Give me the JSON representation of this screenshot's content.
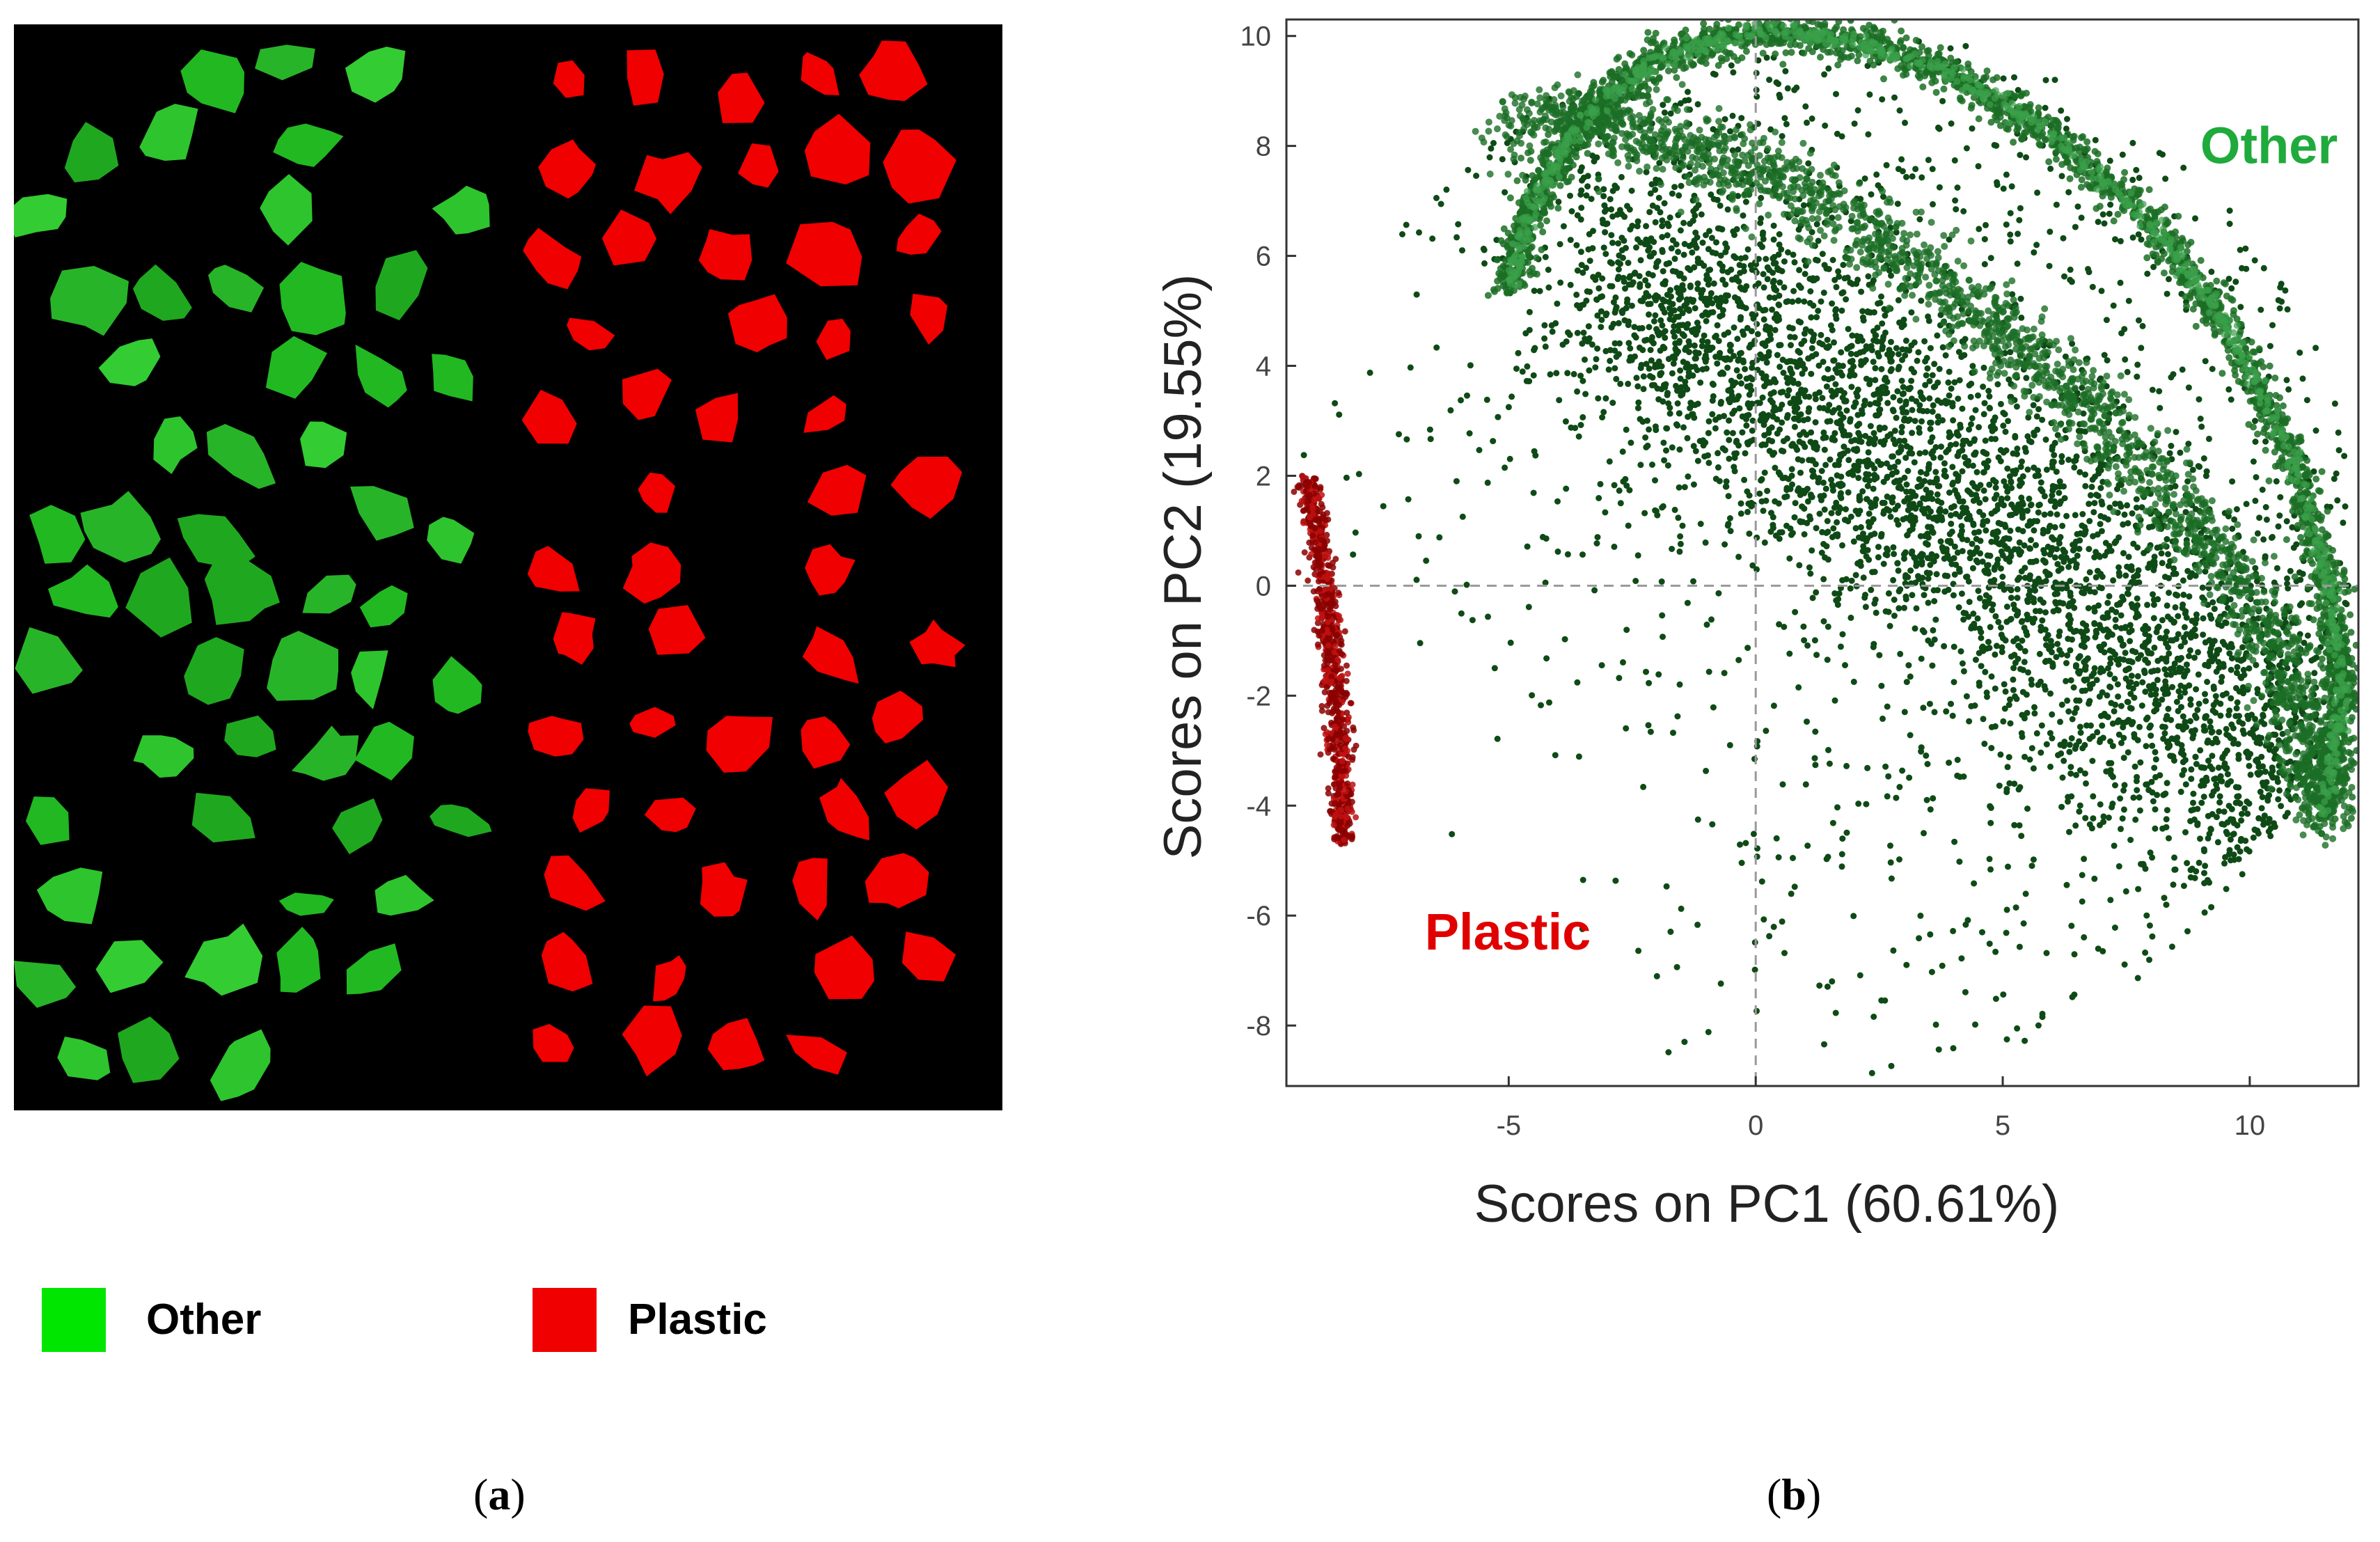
{
  "panel_a": {
    "legend": [
      {
        "label": "Other",
        "color": "#00e600"
      },
      {
        "label": "Plastic",
        "color": "#f00000"
      }
    ],
    "caption_letter": "a",
    "background_color": "#000000"
  },
  "panel_b": {
    "caption_letter": "b"
  },
  "chart_data": {
    "type": "scatter",
    "xlabel": "Scores on PC1 (60.61%)",
    "ylabel": "Scores on PC2 (19.55%)",
    "xlim": [
      -9.5,
      12.2
    ],
    "ylim": [
      -9.1,
      10.3
    ],
    "xticks": [
      -5,
      0,
      5,
      10
    ],
    "yticks": [
      -8,
      -6,
      -4,
      -2,
      0,
      2,
      4,
      6,
      8,
      10
    ],
    "reference_lines": {
      "x": 0,
      "y": 0
    },
    "annotations": [
      {
        "text": "Other",
        "x": 9.0,
        "y": 8.0,
        "color": "#1faa3c"
      },
      {
        "text": "Plastic",
        "x": -6.7,
        "y": -6.3,
        "color": "#e00000"
      }
    ],
    "series": [
      {
        "name": "Other",
        "color": "#0f4a16",
        "arc_upper": [
          [
            -5.0,
            5.4
          ],
          [
            -4.5,
            7.0
          ],
          [
            -3.5,
            8.5
          ],
          [
            -2,
            9.6
          ],
          [
            0,
            10.1
          ],
          [
            2,
            9.9
          ],
          [
            4,
            9.3
          ],
          [
            6,
            8.2
          ],
          [
            8,
            6.6
          ],
          [
            9.5,
            4.8
          ],
          [
            10.8,
            2.5
          ],
          [
            11.6,
            0
          ],
          [
            11.9,
            -2
          ],
          [
            11.5,
            -4.2
          ]
        ],
        "arc_inner": [
          [
            -5.0,
            8.5
          ],
          [
            -3,
            8.4
          ],
          [
            -1,
            7.9
          ],
          [
            1,
            7.1
          ],
          [
            3,
            6.0
          ],
          [
            5,
            4.6
          ],
          [
            7,
            3.0
          ],
          [
            9,
            1.0
          ],
          [
            10.5,
            -1
          ],
          [
            11.3,
            -3
          ],
          [
            11.5,
            -4.2
          ]
        ],
        "cloud_bounds": {
          "x": [
            -9,
            11.8
          ],
          "y": [
            -9,
            8.6
          ]
        }
      },
      {
        "name": "Plastic",
        "color": "#8b0000",
        "x_range": [
          -9.2,
          -7.6
        ],
        "y_range": [
          -4.7,
          2.0
        ]
      }
    ]
  }
}
